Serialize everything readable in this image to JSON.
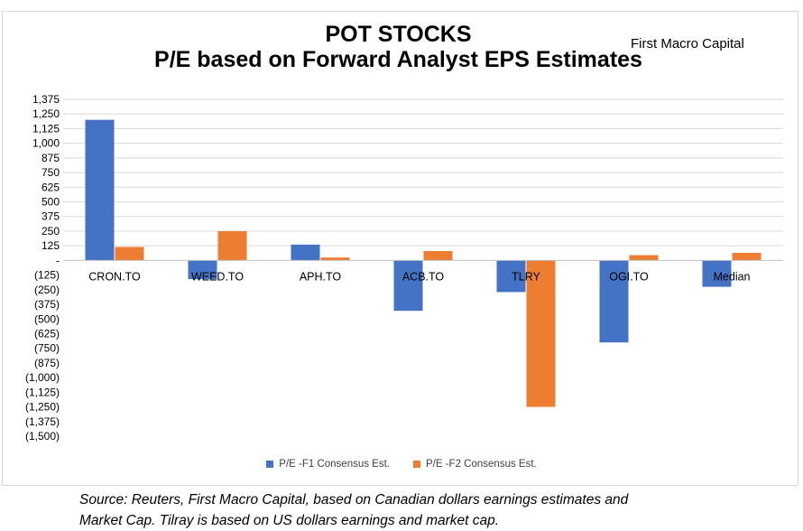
{
  "title": {
    "line1": "POT STOCKS",
    "line2": "P/E based on Forward Analyst EPS Estimates"
  },
  "brand": "First Macro Capital",
  "source": {
    "line1": "Source: Reuters, First Macro Capital, based on Canadian dollars earnings estimates and",
    "line2": "Market Cap. Tilray is based on US dollars earnings and market cap."
  },
  "colors": {
    "series1": "#4472c4",
    "series2": "#ed7d31",
    "grid": "#d9d9d9",
    "axis_text": "#000000"
  },
  "chart_data": {
    "type": "bar",
    "title": "POT STOCKS\nP/E based on Forward Analyst EPS Estimates",
    "categories": [
      "CRON.TO",
      "WEED.TO",
      "APH.TO",
      "ACB.TO",
      "TLRY",
      "OGI.TO",
      "Median"
    ],
    "series": [
      {
        "name": "P/E -F1 Consensus Est.",
        "values": [
          1200,
          -160,
          135,
          -430,
          -270,
          -700,
          -225
        ]
      },
      {
        "name": "P/E -F2 Consensus Est.",
        "values": [
          115,
          250,
          25,
          80,
          -1250,
          45,
          65
        ]
      }
    ],
    "ylim": [
      -1500,
      1375
    ],
    "yticks": [
      1375,
      1250,
      1125,
      1000,
      875,
      750,
      625,
      500,
      375,
      250,
      125,
      0,
      -125,
      -250,
      -375,
      -500,
      -625,
      -750,
      -875,
      -1000,
      -1125,
      -1250,
      -1375,
      -1500
    ],
    "ytick_labels": [
      "1,375",
      "1,250",
      "1,125",
      "1,000",
      "875",
      "750",
      "625",
      "500",
      "375",
      "250",
      "125",
      "-",
      "(125)",
      "(250)",
      "(375)",
      "(500)",
      "(625)",
      "(750)",
      "(875)",
      "(1,000)",
      "(1,125)",
      "(1,250)",
      "(1,375)",
      "(1,500)"
    ],
    "xlabel": "",
    "ylabel": "",
    "grid": true,
    "legend_position": "bottom"
  }
}
